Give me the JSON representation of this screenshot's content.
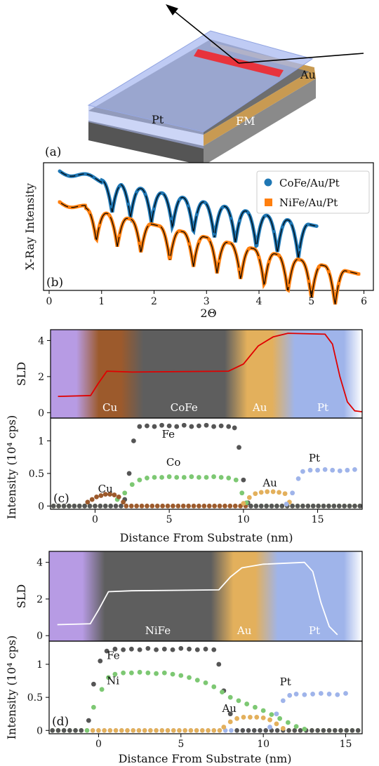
{
  "schematic": {
    "panel_label": "(a)",
    "labels": {
      "pt": "Pt",
      "fm": "FM",
      "au": "Au"
    }
  },
  "chart_data": [
    {
      "id": "b",
      "type": "line",
      "panel_label": "(b)",
      "xlabel": "2Θ",
      "ylabel": "X-Ray Intensity",
      "xlim": [
        0,
        6.1
      ],
      "xticks": [
        0,
        1,
        2,
        3,
        4,
        5,
        6
      ],
      "legend_position": "top-right",
      "series": [
        {
          "name": "CoFe/Au/Pt",
          "color": "#1f77b4",
          "marker": "circle",
          "x_range": [
            0.2,
            5.1
          ],
          "fringe_minima": [
            1.2,
            1.55,
            1.95,
            2.35,
            2.75,
            3.15,
            3.55,
            3.95,
            4.35,
            4.75
          ]
        },
        {
          "name": "NiFe/Au/Pt",
          "color": "#ff7f0e",
          "marker": "square",
          "x_range": [
            0.2,
            5.9
          ],
          "fringe_minima": [
            0.9,
            1.3,
            1.75,
            2.3,
            2.75,
            3.2,
            3.65,
            4.1,
            4.55,
            5.0,
            5.45
          ]
        }
      ]
    },
    {
      "id": "c-sld",
      "type": "line",
      "ylabel": "SLD",
      "xlim": [
        -3,
        18
      ],
      "ylim": [
        -0.3,
        4.6
      ],
      "yticks": [
        0,
        2,
        4
      ],
      "layers": [
        {
          "name": "",
          "start": -3,
          "end": -0.5,
          "color": "#b79be4"
        },
        {
          "name": "Cu",
          "start": -0.5,
          "end": 2.5,
          "color": "#9c5a2c"
        },
        {
          "name": "CoFe",
          "start": 2.5,
          "end": 9.5,
          "color": "#5e5e5e"
        },
        {
          "name": "Au",
          "start": 9.5,
          "end": 12.7,
          "color": "#e3b05c"
        },
        {
          "name": "Pt",
          "start": 12.7,
          "end": 18,
          "color": "#9fb4ea"
        }
      ],
      "series": [
        {
          "name": "",
          "color": "#e00000",
          "x": [
            -2.5,
            -0.3,
            0.2,
            0.8,
            2.5,
            9.0,
            10.0,
            11.0,
            12.0,
            13.0,
            15.5,
            16.0,
            16.5,
            17.0,
            17.5,
            18.0
          ],
          "y": [
            0.9,
            0.95,
            1.6,
            2.3,
            2.25,
            2.3,
            2.7,
            3.7,
            4.2,
            4.4,
            4.35,
            3.8,
            2.0,
            0.6,
            0.1,
            0.05
          ]
        }
      ]
    },
    {
      "id": "c-intensity",
      "type": "scatter",
      "panel_label": "(c)",
      "xlabel": "Distance From Substrate (nm)",
      "ylabel": "Intensity (10⁴ cps)",
      "xlim": [
        -3,
        18
      ],
      "ylim": [
        -0.05,
        1.35
      ],
      "xticks": [
        0,
        5,
        10,
        15
      ],
      "yticks": [
        0,
        0.5,
        1
      ],
      "ytick_labels": [
        "0",
        "0.5",
        "1"
      ],
      "element_labels": [
        {
          "text": "Fe",
          "x": 4.5,
          "y": 1.05
        },
        {
          "text": "Co",
          "x": 4.8,
          "y": 0.62
        },
        {
          "text": "Cu",
          "x": 0.2,
          "y": 0.21
        },
        {
          "text": "Au",
          "x": 11.3,
          "y": 0.3
        },
        {
          "text": "Pt",
          "x": 14.4,
          "y": 0.68
        }
      ],
      "series": [
        {
          "name": "Fe",
          "color": "#555555",
          "x": [
            2.0,
            2.3,
            2.6,
            3.0,
            3.5,
            4,
            4.5,
            5,
            5.5,
            6,
            6.5,
            7,
            7.5,
            8,
            8.5,
            9,
            9.4,
            9.7,
            10.0,
            10.3
          ],
          "y": [
            0.1,
            0.5,
            1.0,
            1.22,
            1.23,
            1.22,
            1.24,
            1.23,
            1.22,
            1.24,
            1.22,
            1.23,
            1.24,
            1.22,
            1.23,
            1.22,
            1.2,
            0.9,
            0.4,
            0.05
          ]
        },
        {
          "name": "Co",
          "color": "#7dc873",
          "x": [
            1.5,
            2.0,
            2.5,
            3.0,
            3.5,
            4,
            4.5,
            5,
            5.5,
            6,
            6.5,
            7,
            7.5,
            8,
            8.5,
            9,
            9.5,
            9.9,
            10.2
          ],
          "y": [
            0.1,
            0.2,
            0.33,
            0.4,
            0.43,
            0.44,
            0.44,
            0.45,
            0.44,
            0.44,
            0.45,
            0.44,
            0.44,
            0.45,
            0.44,
            0.43,
            0.4,
            0.2,
            0.05
          ]
        },
        {
          "name": "Cu",
          "color": "#9c5a2c",
          "x": [
            -0.5,
            -0.2,
            0.1,
            0.4,
            0.7,
            1.0,
            1.3,
            1.6,
            1.9
          ],
          "y": [
            0.06,
            0.1,
            0.14,
            0.16,
            0.18,
            0.18,
            0.17,
            0.14,
            0.06
          ]
        },
        {
          "name": "Au",
          "color": "#e3b05c",
          "x": [
            10.0,
            10.4,
            10.8,
            11.2,
            11.6,
            12.0,
            12.4,
            12.8,
            13.1
          ],
          "y": [
            0.04,
            0.13,
            0.19,
            0.21,
            0.22,
            0.22,
            0.21,
            0.19,
            0.06
          ]
        },
        {
          "name": "Pt",
          "color": "#9fb4ea",
          "x": [
            12.9,
            13.3,
            13.7,
            14.0,
            14.5,
            15,
            15.5,
            16,
            16.5,
            17,
            17.5
          ],
          "y": [
            0.03,
            0.2,
            0.42,
            0.53,
            0.55,
            0.55,
            0.56,
            0.55,
            0.54,
            0.55,
            0.56
          ]
        }
      ]
    },
    {
      "id": "d-sld",
      "type": "line",
      "ylabel": "SLD",
      "xlim": [
        -3,
        16
      ],
      "ylim": [
        -0.3,
        4.6
      ],
      "yticks": [
        0,
        2,
        4
      ],
      "layers": [
        {
          "name": "",
          "start": -3,
          "end": -0.3,
          "color": "#b79be4"
        },
        {
          "name": "NiFe",
          "start": -0.3,
          "end": 7.5,
          "color": "#5e5e5e"
        },
        {
          "name": "Au",
          "start": 7.5,
          "end": 10.2,
          "color": "#e3b05c"
        },
        {
          "name": "Pt",
          "start": 10.2,
          "end": 16,
          "color": "#9fb4ea"
        }
      ],
      "series": [
        {
          "name": "",
          "color": "#ffffff",
          "x": [
            -2.5,
            -0.5,
            0.0,
            0.6,
            2.0,
            7.3,
            8.0,
            8.7,
            10.0,
            12.5,
            13.0,
            13.5,
            14.0,
            14.5
          ],
          "y": [
            0.6,
            0.65,
            1.4,
            2.4,
            2.45,
            2.5,
            3.2,
            3.7,
            3.9,
            4.0,
            3.5,
            1.8,
            0.5,
            0.05
          ]
        }
      ]
    },
    {
      "id": "d-intensity",
      "type": "scatter",
      "panel_label": "(d)",
      "xlabel": "Distance From Substrate (nm)",
      "ylabel": "Intensity (10⁴ cps)",
      "xlim": [
        -3,
        16
      ],
      "ylim": [
        -0.05,
        1.35
      ],
      "xticks": [
        0,
        5,
        10,
        15
      ],
      "yticks": [
        0,
        0.5,
        1
      ],
      "ytick_labels": [
        "0",
        "0.5",
        "1"
      ],
      "element_labels": [
        {
          "text": "Fe",
          "x": 0.5,
          "y": 1.08
        },
        {
          "text": "Ni",
          "x": 0.5,
          "y": 0.7
        },
        {
          "text": "Au",
          "x": 7.5,
          "y": 0.28
        },
        {
          "text": "Pt",
          "x": 11.0,
          "y": 0.68
        }
      ],
      "series": [
        {
          "name": "Fe",
          "color": "#555555",
          "x": [
            -0.6,
            -0.3,
            0.1,
            0.5,
            1,
            1.5,
            2,
            2.5,
            3,
            3.5,
            4,
            4.5,
            5,
            5.5,
            6,
            6.5,
            7,
            7.3,
            7.6,
            8.0
          ],
          "y": [
            0.15,
            0.7,
            1.05,
            1.2,
            1.23,
            1.22,
            1.23,
            1.22,
            1.24,
            1.22,
            1.23,
            1.22,
            1.24,
            1.23,
            1.22,
            1.23,
            1.22,
            1.0,
            0.6,
            0.25
          ]
        },
        {
          "name": "Ni",
          "color": "#7dc873",
          "x": [
            -0.3,
            0.2,
            0.6,
            1,
            1.5,
            2,
            2.5,
            3,
            3.5,
            4,
            4.5,
            5,
            5.5,
            6,
            6.5,
            7,
            7.5,
            8,
            8.5,
            9,
            9.5,
            10,
            10.5,
            11,
            11.5,
            12,
            12.5
          ],
          "y": [
            0.35,
            0.62,
            0.8,
            0.85,
            0.87,
            0.87,
            0.88,
            0.87,
            0.86,
            0.87,
            0.85,
            0.83,
            0.8,
            0.76,
            0.72,
            0.66,
            0.58,
            0.5,
            0.45,
            0.4,
            0.35,
            0.3,
            0.24,
            0.18,
            0.12,
            0.06,
            0.02
          ]
        },
        {
          "name": "Au",
          "color": "#e3b05c",
          "x": [
            7.6,
            8.0,
            8.4,
            8.8,
            9.2,
            9.6,
            10.0,
            10.4,
            10.8,
            11.2
          ],
          "y": [
            0.05,
            0.13,
            0.18,
            0.2,
            0.2,
            0.2,
            0.19,
            0.16,
            0.1,
            0.03
          ]
        },
        {
          "name": "Pt",
          "color": "#9fb4ea",
          "x": [
            10.4,
            10.8,
            11.2,
            11.6,
            12,
            12.5,
            13,
            13.5,
            14,
            14.5,
            15
          ],
          "y": [
            0.05,
            0.25,
            0.45,
            0.53,
            0.55,
            0.54,
            0.55,
            0.56,
            0.55,
            0.54,
            0.56
          ]
        }
      ]
    }
  ]
}
